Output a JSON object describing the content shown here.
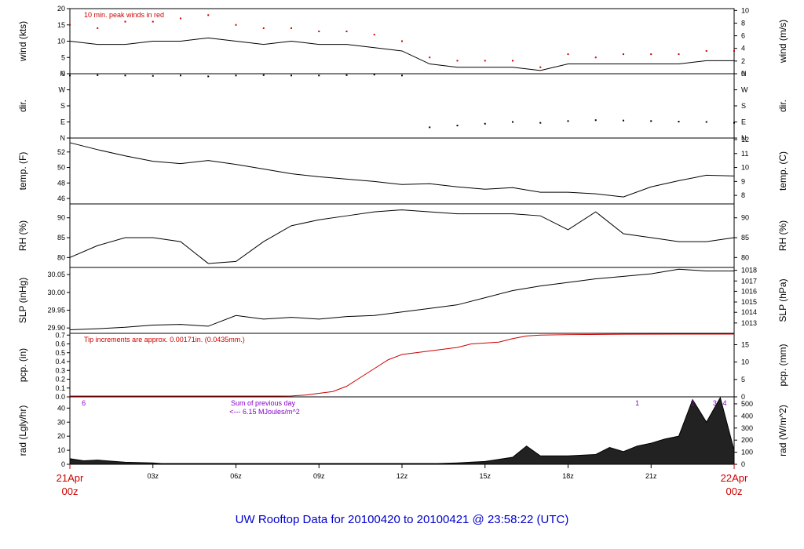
{
  "chart_data": {
    "type": "line",
    "title": "UW Rooftop Data for 20100420  to  20100421 @ 23:58:22  (UTC)",
    "x_axis": {
      "unit": "hours UTC",
      "range": [
        0,
        24
      ],
      "tick_labels": [
        "03z",
        "06z",
        "09z",
        "12z",
        "15z",
        "18z",
        "21z"
      ],
      "tick_hours": [
        3,
        6,
        9,
        12,
        15,
        18,
        21
      ],
      "start_label": [
        "21Apr",
        "00z"
      ],
      "end_label": [
        "22Apr",
        "00z"
      ]
    },
    "panels": [
      {
        "id": "wind",
        "ylabel_left": "wind (kts)",
        "ylabel_right": "wind (m/s)",
        "ylim": [
          0,
          20
        ],
        "left_ticks": [
          0,
          5,
          10,
          15,
          20
        ],
        "right_ticks": [
          "0",
          "2",
          "4",
          "6",
          "8",
          "10"
        ],
        "right_tick_values": [
          0,
          3.89,
          7.78,
          11.66,
          15.55,
          19.44
        ],
        "annotation": "10 min. peak winds in red",
        "series": [
          {
            "x": [
              0,
              1,
              2,
              3,
              4,
              5,
              6,
              7,
              8,
              9,
              10,
              11,
              12,
              13,
              14,
              15,
              16,
              17,
              18,
              19,
              20,
              21,
              22,
              23,
              24
            ],
            "values": [
              10,
              9,
              9,
              10,
              10,
              11,
              10,
              9,
              10,
              9,
              9,
              8,
              7,
              3,
              2,
              2,
              2,
              1,
              3,
              3,
              3,
              3,
              3,
              4,
              4
            ]
          },
          {
            "x": [
              0,
              1,
              2,
              3,
              4,
              5,
              6,
              7,
              8,
              9,
              10,
              11,
              12,
              13,
              14,
              15,
              16,
              17,
              18,
              19,
              20,
              21,
              22,
              23,
              24
            ],
            "values": [
              15,
              14,
              16,
              16,
              17,
              18,
              15,
              14,
              14,
              13,
              13,
              12,
              10,
              5,
              4,
              4,
              4,
              2,
              6,
              5,
              6,
              6,
              6,
              7,
              7
            ]
          }
        ]
      },
      {
        "id": "dir",
        "ylabel_left": "dir.",
        "ylabel_right": "dir.",
        "ylim": [
          0,
          360
        ],
        "left_ticks": [
          "N",
          "E",
          "S",
          "W",
          "N"
        ],
        "right_ticks": [
          "N",
          "E",
          "S",
          "W",
          "N"
        ],
        "series": [
          {
            "x": [
              0,
              1,
              2,
              3,
              4,
              5,
              6,
              7,
              8,
              9,
              10,
              11,
              12,
              13,
              14,
              15,
              16,
              17,
              18,
              19,
              20,
              21,
              22,
              23,
              24
            ],
            "values": [
              350,
              352,
              350,
              348,
              350,
              345,
              350,
              352,
              350,
              350,
              352,
              355,
              350,
              60,
              70,
              80,
              90,
              85,
              95,
              100,
              98,
              95,
              92,
              90,
              85
            ]
          }
        ]
      },
      {
        "id": "temp",
        "ylabel_left": "temp. (F)",
        "ylabel_right": "temp. (C)",
        "ylim": [
          45.3,
          53.8
        ],
        "left_ticks": [
          46,
          48,
          50,
          52
        ],
        "right_ticks": [
          "8",
          "9",
          "10",
          "11",
          "12"
        ],
        "right_tick_values": [
          46.4,
          48.2,
          50,
          51.8,
          53.6
        ],
        "series": [
          {
            "x": [
              0,
              1,
              2,
              3,
              4,
              5,
              6,
              7,
              8,
              9,
              10,
              11,
              12,
              13,
              14,
              15,
              16,
              17,
              18,
              19,
              20,
              21,
              22,
              23,
              24
            ],
            "values": [
              53.2,
              52.3,
              51.5,
              50.8,
              50.5,
              50.9,
              50.4,
              49.8,
              49.2,
              48.8,
              48.5,
              48.2,
              47.8,
              47.9,
              47.5,
              47.2,
              47.4,
              46.8,
              46.8,
              46.6,
              46.2,
              47.5,
              48.3,
              49.0,
              48.9
            ]
          }
        ]
      },
      {
        "id": "rh",
        "ylabel_left": "RH (%)",
        "ylabel_right": "RH (%)",
        "ylim": [
          77.5,
          93.5
        ],
        "left_ticks": [
          80,
          85,
          90
        ],
        "right_ticks": [
          "80",
          "85",
          "90"
        ],
        "right_tick_values": [
          80,
          85,
          90
        ],
        "series": [
          {
            "x": [
              0,
              1,
              2,
              3,
              4,
              5,
              6,
              7,
              8,
              9,
              10,
              11,
              12,
              13,
              14,
              15,
              16,
              17,
              18,
              19,
              20,
              21,
              22,
              23,
              24
            ],
            "values": [
              80,
              83,
              85,
              85,
              84,
              78.5,
              79,
              84,
              88,
              89.5,
              90.5,
              91.5,
              92,
              91.5,
              91,
              91,
              91,
              90.5,
              87,
              91.5,
              86,
              85,
              84,
              84,
              85
            ]
          }
        ]
      },
      {
        "id": "slp",
        "ylabel_left": "SLP (inHg)",
        "ylabel_right": "SLP (hPa)",
        "ylim": [
          29.885,
          30.07
        ],
        "left_ticks": [
          29.9,
          29.95,
          30.0,
          30.05
        ],
        "left_tick_labels": [
          "29.90",
          "29.95",
          "30.00",
          "30.05"
        ],
        "right_ticks": [
          "1013",
          "1014",
          "1015",
          "1016",
          "1017",
          "1018"
        ],
        "right_tick_values": [
          29.914,
          29.944,
          29.973,
          30.003,
          30.032,
          30.062
        ],
        "series": [
          {
            "x": [
              0,
              1,
              2,
              3,
              4,
              5,
              6,
              7,
              8,
              9,
              10,
              11,
              12,
              13,
              14,
              15,
              16,
              17,
              18,
              19,
              20,
              21,
              22,
              23,
              24
            ],
            "values": [
              29.895,
              29.898,
              29.902,
              29.908,
              29.91,
              29.905,
              29.935,
              29.925,
              29.93,
              29.925,
              29.932,
              29.935,
              29.945,
              29.955,
              29.965,
              29.985,
              30.005,
              30.018,
              30.028,
              30.038,
              30.045,
              30.052,
              30.065,
              30.06,
              30.06
            ]
          }
        ]
      },
      {
        "id": "pcp",
        "ylabel_left": "pcp. (in)",
        "ylabel_right": "pcp. (mm)",
        "ylim": [
          0,
          0.72
        ],
        "left_ticks": [
          0,
          0.1,
          0.2,
          0.3,
          0.4,
          0.5,
          0.6,
          0.7
        ],
        "left_tick_labels": [
          "0.0",
          "0.1",
          "0.2",
          "0.3",
          "0.4",
          "0.5",
          "0.6",
          "0.7"
        ],
        "right_ticks": [
          "0",
          "5",
          "10",
          "15"
        ],
        "right_tick_values": [
          0,
          0.197,
          0.394,
          0.591
        ],
        "annotation": "Tip increments are approx. 0.00171in. (0.0435mm.)",
        "series": [
          {
            "x": [
              0,
              6,
              7,
              7.5,
              8,
              8.5,
              9,
              9.5,
              10,
              10.5,
              11,
              11.5,
              12,
              13,
              14,
              14.5,
              15,
              15.5,
              16,
              16.5,
              17,
              18,
              20,
              22,
              24
            ],
            "values": [
              0,
              0,
              0,
              0,
              0.01,
              0.02,
              0.04,
              0.06,
              0.12,
              0.22,
              0.32,
              0.42,
              0.48,
              0.52,
              0.56,
              0.6,
              0.61,
              0.62,
              0.66,
              0.69,
              0.7,
              0.705,
              0.71,
              0.715,
              0.715
            ]
          }
        ]
      },
      {
        "id": "rad",
        "ylabel_left": "rad (Lgly/hr)",
        "ylabel_right": "rad (W/m^2)",
        "ylim": [
          0,
          48
        ],
        "left_ticks": [
          0,
          10,
          20,
          30,
          40
        ],
        "right_ticks": [
          "0",
          "100",
          "200",
          "300",
          "400",
          "500"
        ],
        "right_tick_values": [
          0,
          8.6,
          17.2,
          25.8,
          34.4,
          43.0
        ],
        "annotation_lines": [
          "Sum of previous day",
          "<--- 6.15 MJoules/m^2"
        ],
        "hour_marks": [
          "6",
          "1",
          "2",
          "3",
          "4"
        ],
        "hour_mark_x": [
          0.5,
          20.5,
          22.5,
          23.3,
          24.3
        ],
        "series": [
          {
            "x": [
              0,
              0.5,
              1,
              2,
              3,
              3.3,
              13.3,
              14,
              15,
              16,
              16.5,
              17,
              18,
              19,
              19.5,
              20,
              20.5,
              21,
              21.5,
              22,
              22.5,
              23,
              23.5,
              24
            ],
            "values": [
              4,
              2.5,
              3,
              1.5,
              1,
              0,
              0,
              1,
              2,
              5,
              13,
              6,
              6,
              7,
              12,
              9,
              13,
              15,
              18,
              20,
              46,
              30,
              48,
              10
            ]
          }
        ]
      }
    ]
  }
}
